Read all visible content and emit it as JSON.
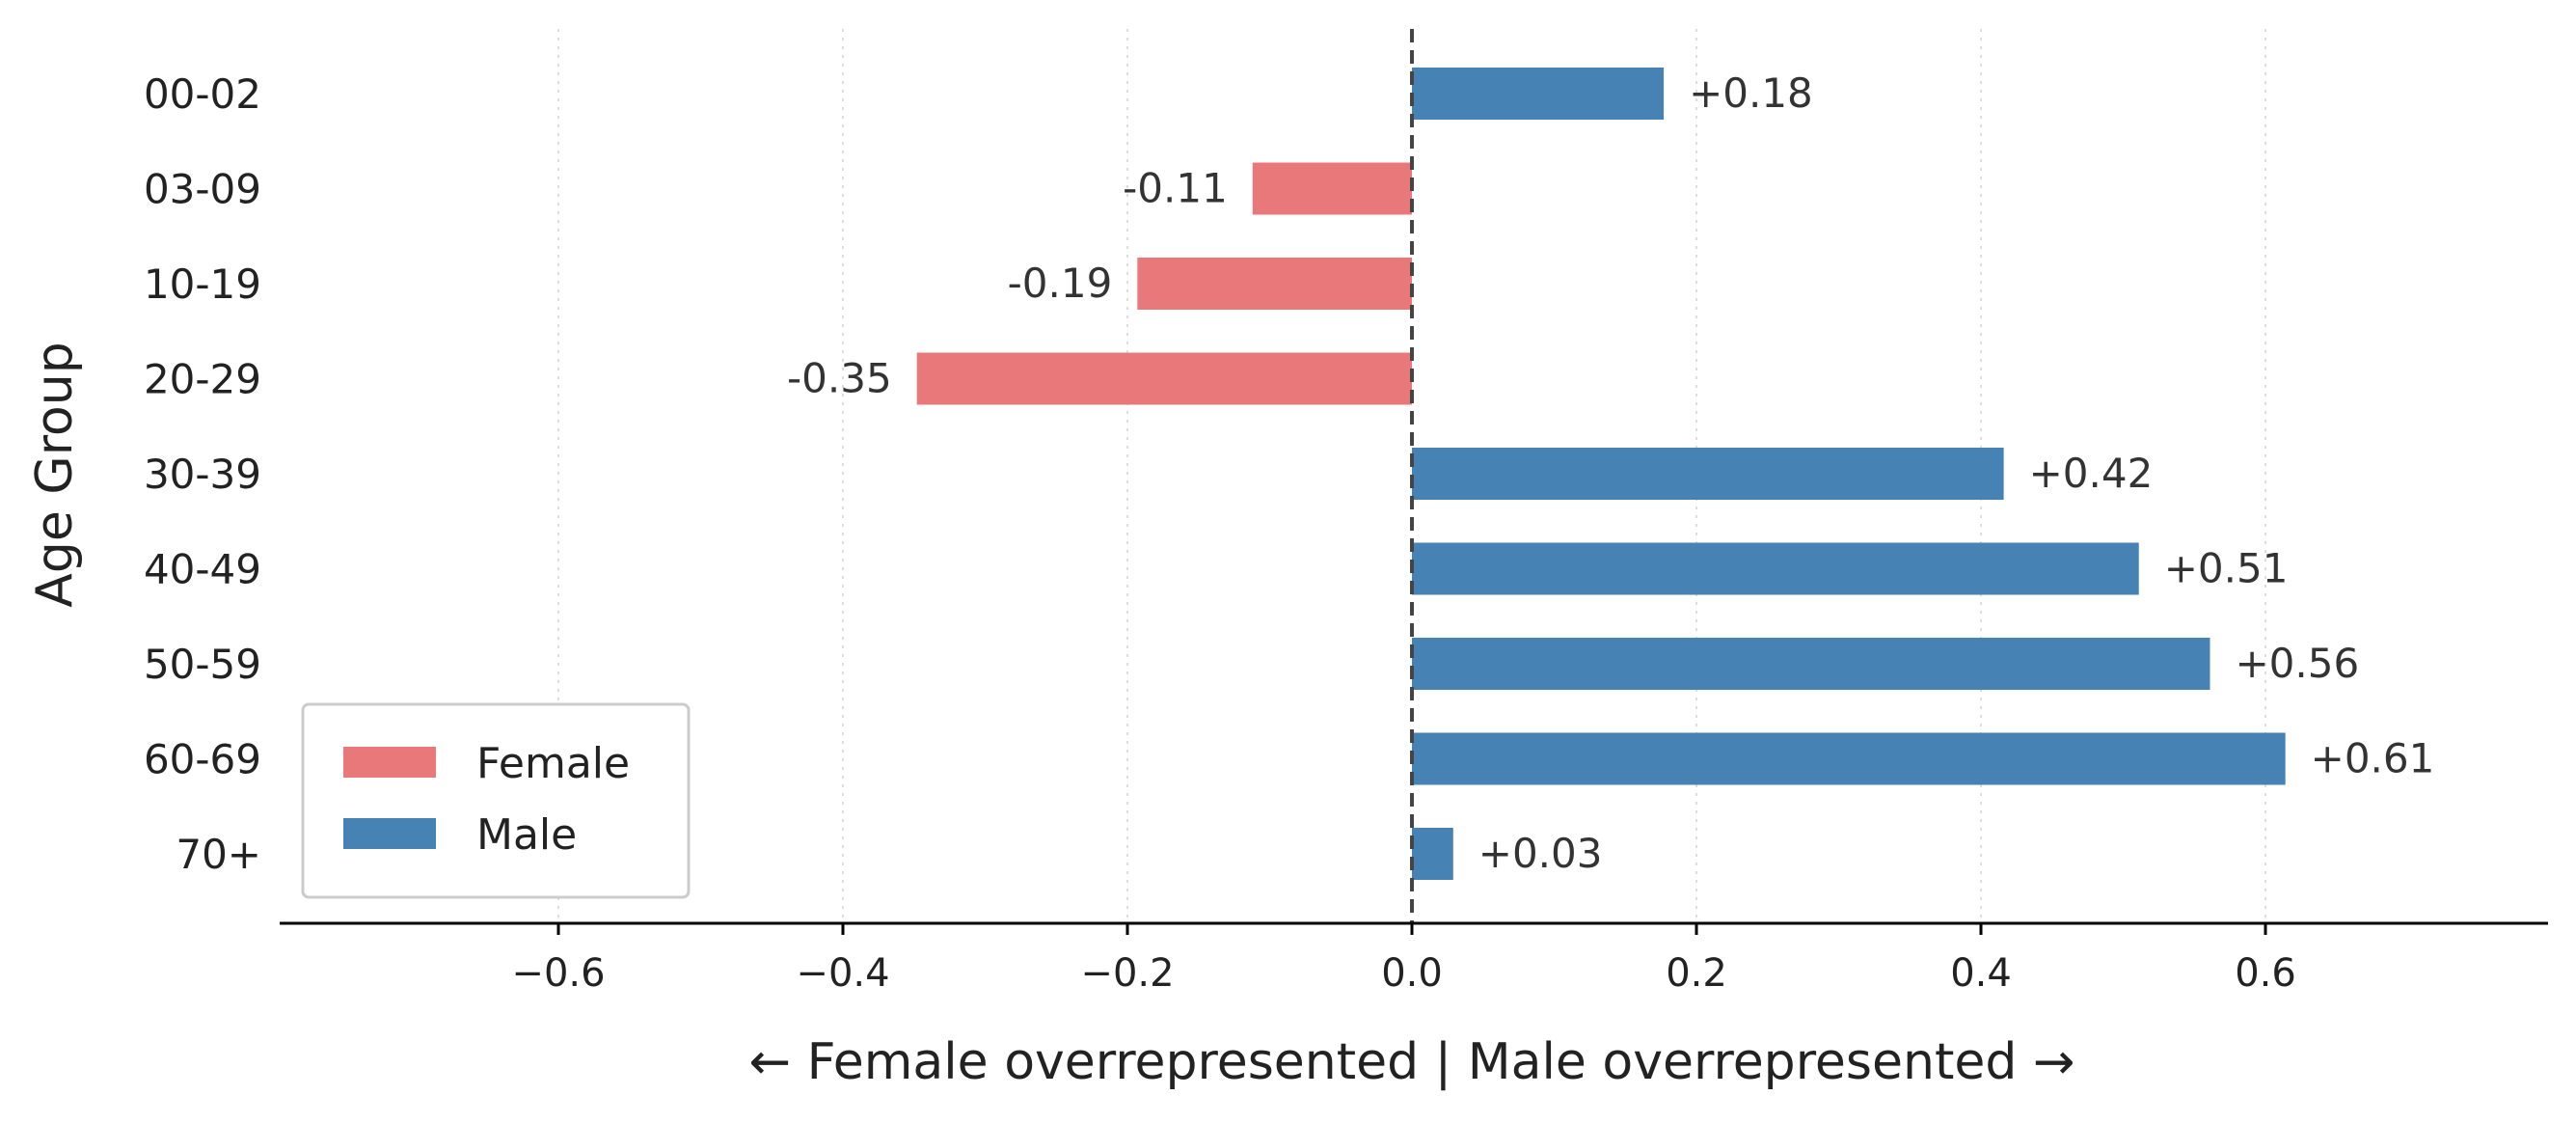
{
  "chart_data": {
    "type": "bar",
    "orientation": "horizontal",
    "categories": [
      "00-02",
      "03-09",
      "10-19",
      "20-29",
      "30-39",
      "40-49",
      "50-59",
      "60-69",
      "70+"
    ],
    "values": [
      0.177,
      -0.112,
      -0.193,
      -0.348,
      0.416,
      0.511,
      0.561,
      0.614,
      0.029
    ],
    "data_labels": [
      "+0.18",
      "-0.11",
      "-0.19",
      "-0.35",
      "+0.42",
      "+0.51",
      "+0.56",
      "+0.61",
      "+0.03"
    ],
    "xlabel": "← Female overrepresented  |  Male overrepresented →",
    "ylabel": "Age Group",
    "xlim": [
      -0.8,
      0.8
    ],
    "xticks": [
      -0.6,
      -0.4,
      -0.2,
      0.0,
      0.2,
      0.4,
      0.6
    ],
    "xtick_labels": [
      "−0.6",
      "−0.4",
      "−0.2",
      "0.0",
      "0.2",
      "0.4",
      "0.6"
    ],
    "grid": "vertical dotted",
    "reference_line": 0,
    "legend": {
      "placement": "lower-left",
      "entries": [
        {
          "label": "Female",
          "color": "#e8787a"
        },
        {
          "label": "Male",
          "color": "#4682b4"
        }
      ]
    },
    "colors": {
      "negative": "#e8787a",
      "positive": "#4682b4"
    }
  }
}
